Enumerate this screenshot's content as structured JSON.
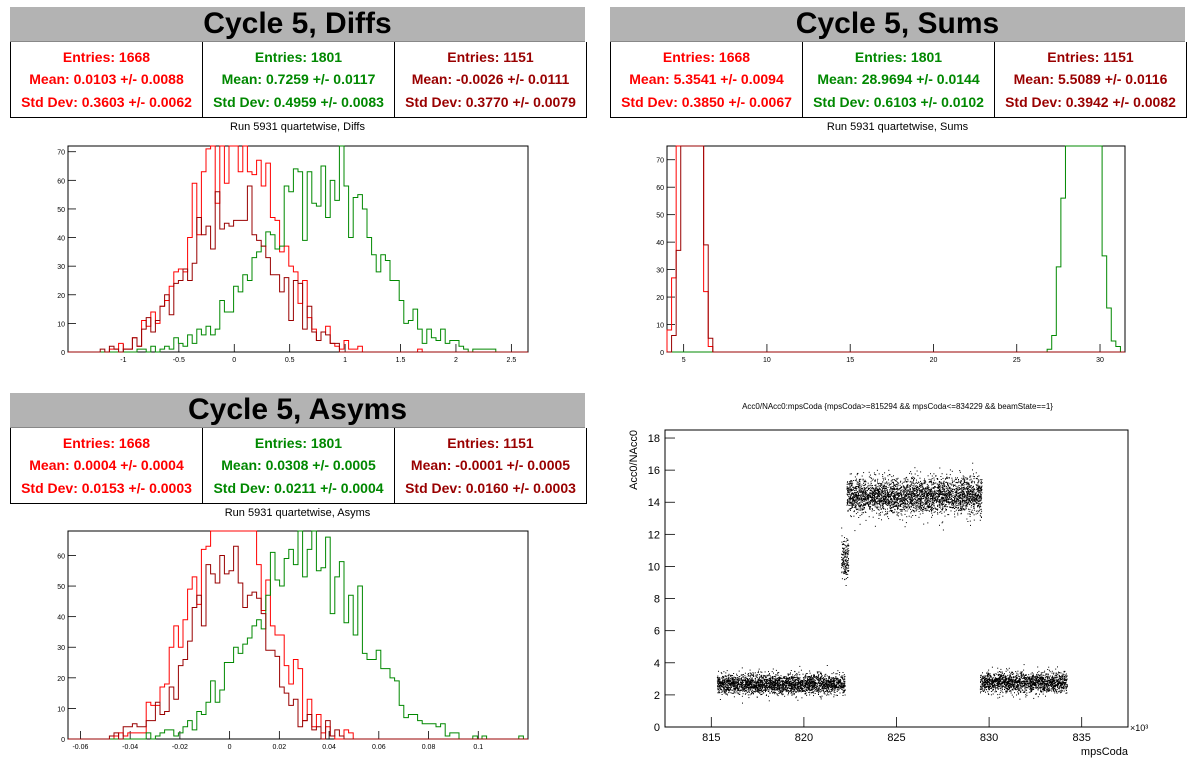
{
  "colors": {
    "red": "#ff0000",
    "green": "#008800",
    "darkred": "#990000",
    "title_bg": "#b3b3b3"
  },
  "panels": {
    "diffs": {
      "title": "Cycle 5, Diffs",
      "subtitle": "Run 5931 quartetwise, Diffs",
      "stats": [
        {
          "entries": "Entries: 1668",
          "mean": "Mean: 0.0103 +/- 0.0088",
          "std": "Std Dev: 0.3603 +/- 0.0062"
        },
        {
          "entries": "Entries: 1801",
          "mean": "Mean: 0.7259 +/- 0.0117",
          "std": "Std Dev: 0.4959 +/- 0.0083"
        },
        {
          "entries": "Entries: 1151",
          "mean": "Mean: -0.0026 +/- 0.0111",
          "std": "Std Dev: 0.3770 +/- 0.0079"
        }
      ]
    },
    "sums": {
      "title": "Cycle 5, Sums",
      "subtitle": "Run 5931 quartetwise, Sums",
      "stats": [
        {
          "entries": "Entries: 1668",
          "mean": "Mean: 5.3541 +/- 0.0094",
          "std": "Std Dev: 0.3850 +/- 0.0067"
        },
        {
          "entries": "Entries: 1801",
          "mean": "Mean: 28.9694 +/- 0.0144",
          "std": "Std Dev: 0.6103 +/- 0.0102"
        },
        {
          "entries": "Entries: 1151",
          "mean": "Mean: 5.5089 +/- 0.0116",
          "std": "Std Dev: 0.3942 +/- 0.0082"
        }
      ]
    },
    "asyms": {
      "title": "Cycle 5, Asyms",
      "subtitle": "Run 5931 quartetwise, Asyms",
      "stats": [
        {
          "entries": "Entries: 1668",
          "mean": "Mean: 0.0004 +/- 0.0004",
          "std": "Std Dev: 0.0153 +/- 0.0003"
        },
        {
          "entries": "Entries: 1801",
          "mean": "Mean: 0.0308 +/- 0.0005",
          "std": "Std Dev: 0.0211 +/- 0.0004"
        },
        {
          "entries": "Entries: 1151",
          "mean": "Mean: -0.0001 +/- 0.0005",
          "std": "Std Dev: 0.0160 +/- 0.0003"
        }
      ]
    },
    "scatter": {
      "title": "Acc0/NAcc0:mpsCoda {mpsCoda>=815294 && mpsCoda<=834229 && beamState==1}"
    }
  },
  "chart_data": [
    {
      "id": "diffs",
      "type": "histogram",
      "xlim": [
        -1.5,
        2.65
      ],
      "ylim": [
        0,
        72
      ],
      "xticks": [
        -1,
        -0.5,
        0,
        0.5,
        1,
        1.5,
        2,
        2.5
      ],
      "xtick_labels": [
        "-1",
        "-0.5",
        "0",
        "0.5",
        "1",
        "1.5",
        "2",
        "2.5"
      ],
      "yticks": [
        0,
        10,
        20,
        30,
        40,
        50,
        60,
        70
      ],
      "series": [
        {
          "color": "red",
          "entries": 1668,
          "mean": 0.0103,
          "std": 0.3603,
          "seed": 11
        },
        {
          "color": "green",
          "entries": 1801,
          "mean": 0.7259,
          "std": 0.4959,
          "seed": 23
        },
        {
          "color": "darkred",
          "entries": 1151,
          "mean": -0.0026,
          "std": 0.377,
          "seed": 37
        }
      ]
    },
    {
      "id": "sums",
      "type": "histogram",
      "xlim": [
        4,
        31.5
      ],
      "ylim": [
        0,
        75
      ],
      "xticks": [
        5,
        10,
        15,
        20,
        25,
        30
      ],
      "xtick_labels": [
        "5",
        "10",
        "15",
        "20",
        "25",
        "30"
      ],
      "yticks": [
        0,
        10,
        20,
        30,
        40,
        50,
        60,
        70
      ],
      "series": [
        {
          "color": "red",
          "entries": 1668,
          "mean": 5.3541,
          "std": 0.385,
          "seed": 5
        },
        {
          "color": "green",
          "entries": 1801,
          "mean": 28.9694,
          "std": 0.6103,
          "seed": 17
        },
        {
          "color": "darkred",
          "entries": 1151,
          "mean": 5.5089,
          "std": 0.3942,
          "seed": 41
        }
      ]
    },
    {
      "id": "asyms",
      "type": "histogram",
      "xlim": [
        -0.065,
        0.12
      ],
      "ylim": [
        0,
        68
      ],
      "xticks": [
        -0.06,
        -0.04,
        -0.02,
        0,
        0.02,
        0.04,
        0.06,
        0.08,
        0.1
      ],
      "xtick_labels": [
        "-0.06",
        "-0.04",
        "-0.02",
        "0",
        "0.02",
        "0.04",
        "0.06",
        "0.08",
        "0.1"
      ],
      "yticks": [
        0,
        10,
        20,
        30,
        40,
        50,
        60
      ],
      "series": [
        {
          "color": "red",
          "entries": 1668,
          "mean": 0.0004,
          "std": 0.0153,
          "seed": 7
        },
        {
          "color": "green",
          "entries": 1801,
          "mean": 0.0308,
          "std": 0.0211,
          "seed": 29
        },
        {
          "color": "darkred",
          "entries": 1151,
          "mean": -0.0001,
          "std": 0.016,
          "seed": 53
        }
      ]
    },
    {
      "id": "scatter",
      "type": "scatter",
      "xlabel": "mpsCoda",
      "ylabel": "Acc0/NAcc0",
      "x_multiplier": "×10³",
      "xlim": [
        812.5,
        837.5
      ],
      "ylim": [
        0,
        18.5
      ],
      "xticks": [
        815,
        820,
        825,
        830,
        835
      ],
      "xtick_labels": [
        "815",
        "820",
        "825",
        "830",
        "835"
      ],
      "yticks": [
        0,
        2,
        4,
        6,
        8,
        10,
        12,
        14,
        16,
        18
      ],
      "ytick_labels": [
        "0",
        "2",
        "4",
        "6",
        "8",
        "10",
        "12",
        "14",
        "16",
        "18"
      ],
      "clusters": [
        {
          "x": [
            815.3,
            822.2
          ],
          "y": 2.7,
          "spread": 0.45,
          "count": 2600
        },
        {
          "x": [
            822.0,
            822.4
          ],
          "y": 10.5,
          "spread": 1.0,
          "count": 160
        },
        {
          "x": [
            822.3,
            829.6
          ],
          "y": 14.4,
          "spread": 0.8,
          "count": 3200
        },
        {
          "x": [
            829.5,
            834.2
          ],
          "y": 2.8,
          "spread": 0.45,
          "count": 1700
        }
      ]
    }
  ]
}
